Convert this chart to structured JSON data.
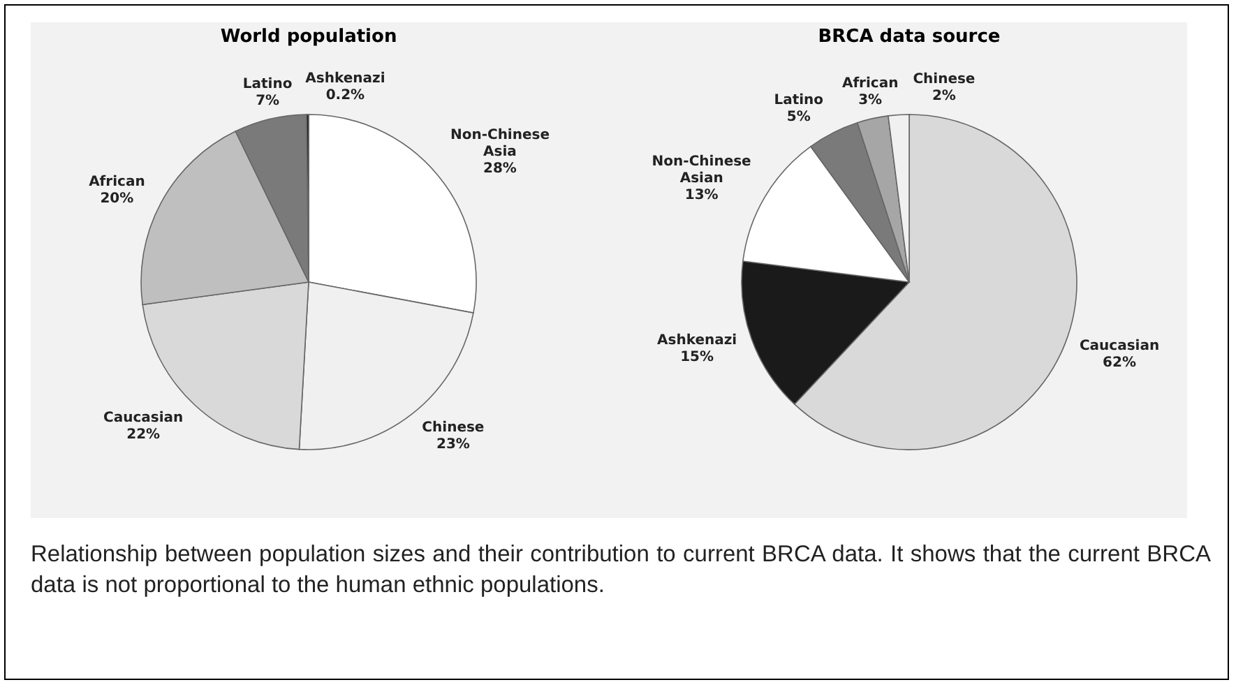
{
  "chart_data": [
    {
      "type": "pie",
      "title": "World population",
      "categories": [
        "Non-Chinese Asia",
        "Chinese",
        "Caucasian",
        "African",
        "Latino",
        "Ashkenazi"
      ],
      "values": [
        28,
        23,
        22,
        20,
        7,
        0.2
      ],
      "value_labels": [
        "28%",
        "23%",
        "22%",
        "20%",
        "7%",
        "0.2%"
      ],
      "colors": [
        "#ffffff",
        "#f0f0f0",
        "#d9d9d9",
        "#bfbfbf",
        "#7a7a7a",
        "#1a1a1a"
      ]
    },
    {
      "type": "pie",
      "title": "BRCA data source",
      "categories": [
        "Caucasian",
        "Ashkenazi",
        "Non-Chinese Asian",
        "Latino",
        "African",
        "Chinese"
      ],
      "values": [
        62,
        15,
        13,
        5,
        3,
        2
      ],
      "value_labels": [
        "62%",
        "15%",
        "13%",
        "5%",
        "3%",
        "2%"
      ],
      "colors": [
        "#d9d9d9",
        "#1a1a1a",
        "#ffffff",
        "#7a7a7a",
        "#a6a6a6",
        "#f0f0f0"
      ],
      "annotations": [
        "Relationship between population sizes and their contribution to current BRCA data. It shows that the current BRCA data is not proportional to the human ethnic populations."
      ]
    }
  ]
}
